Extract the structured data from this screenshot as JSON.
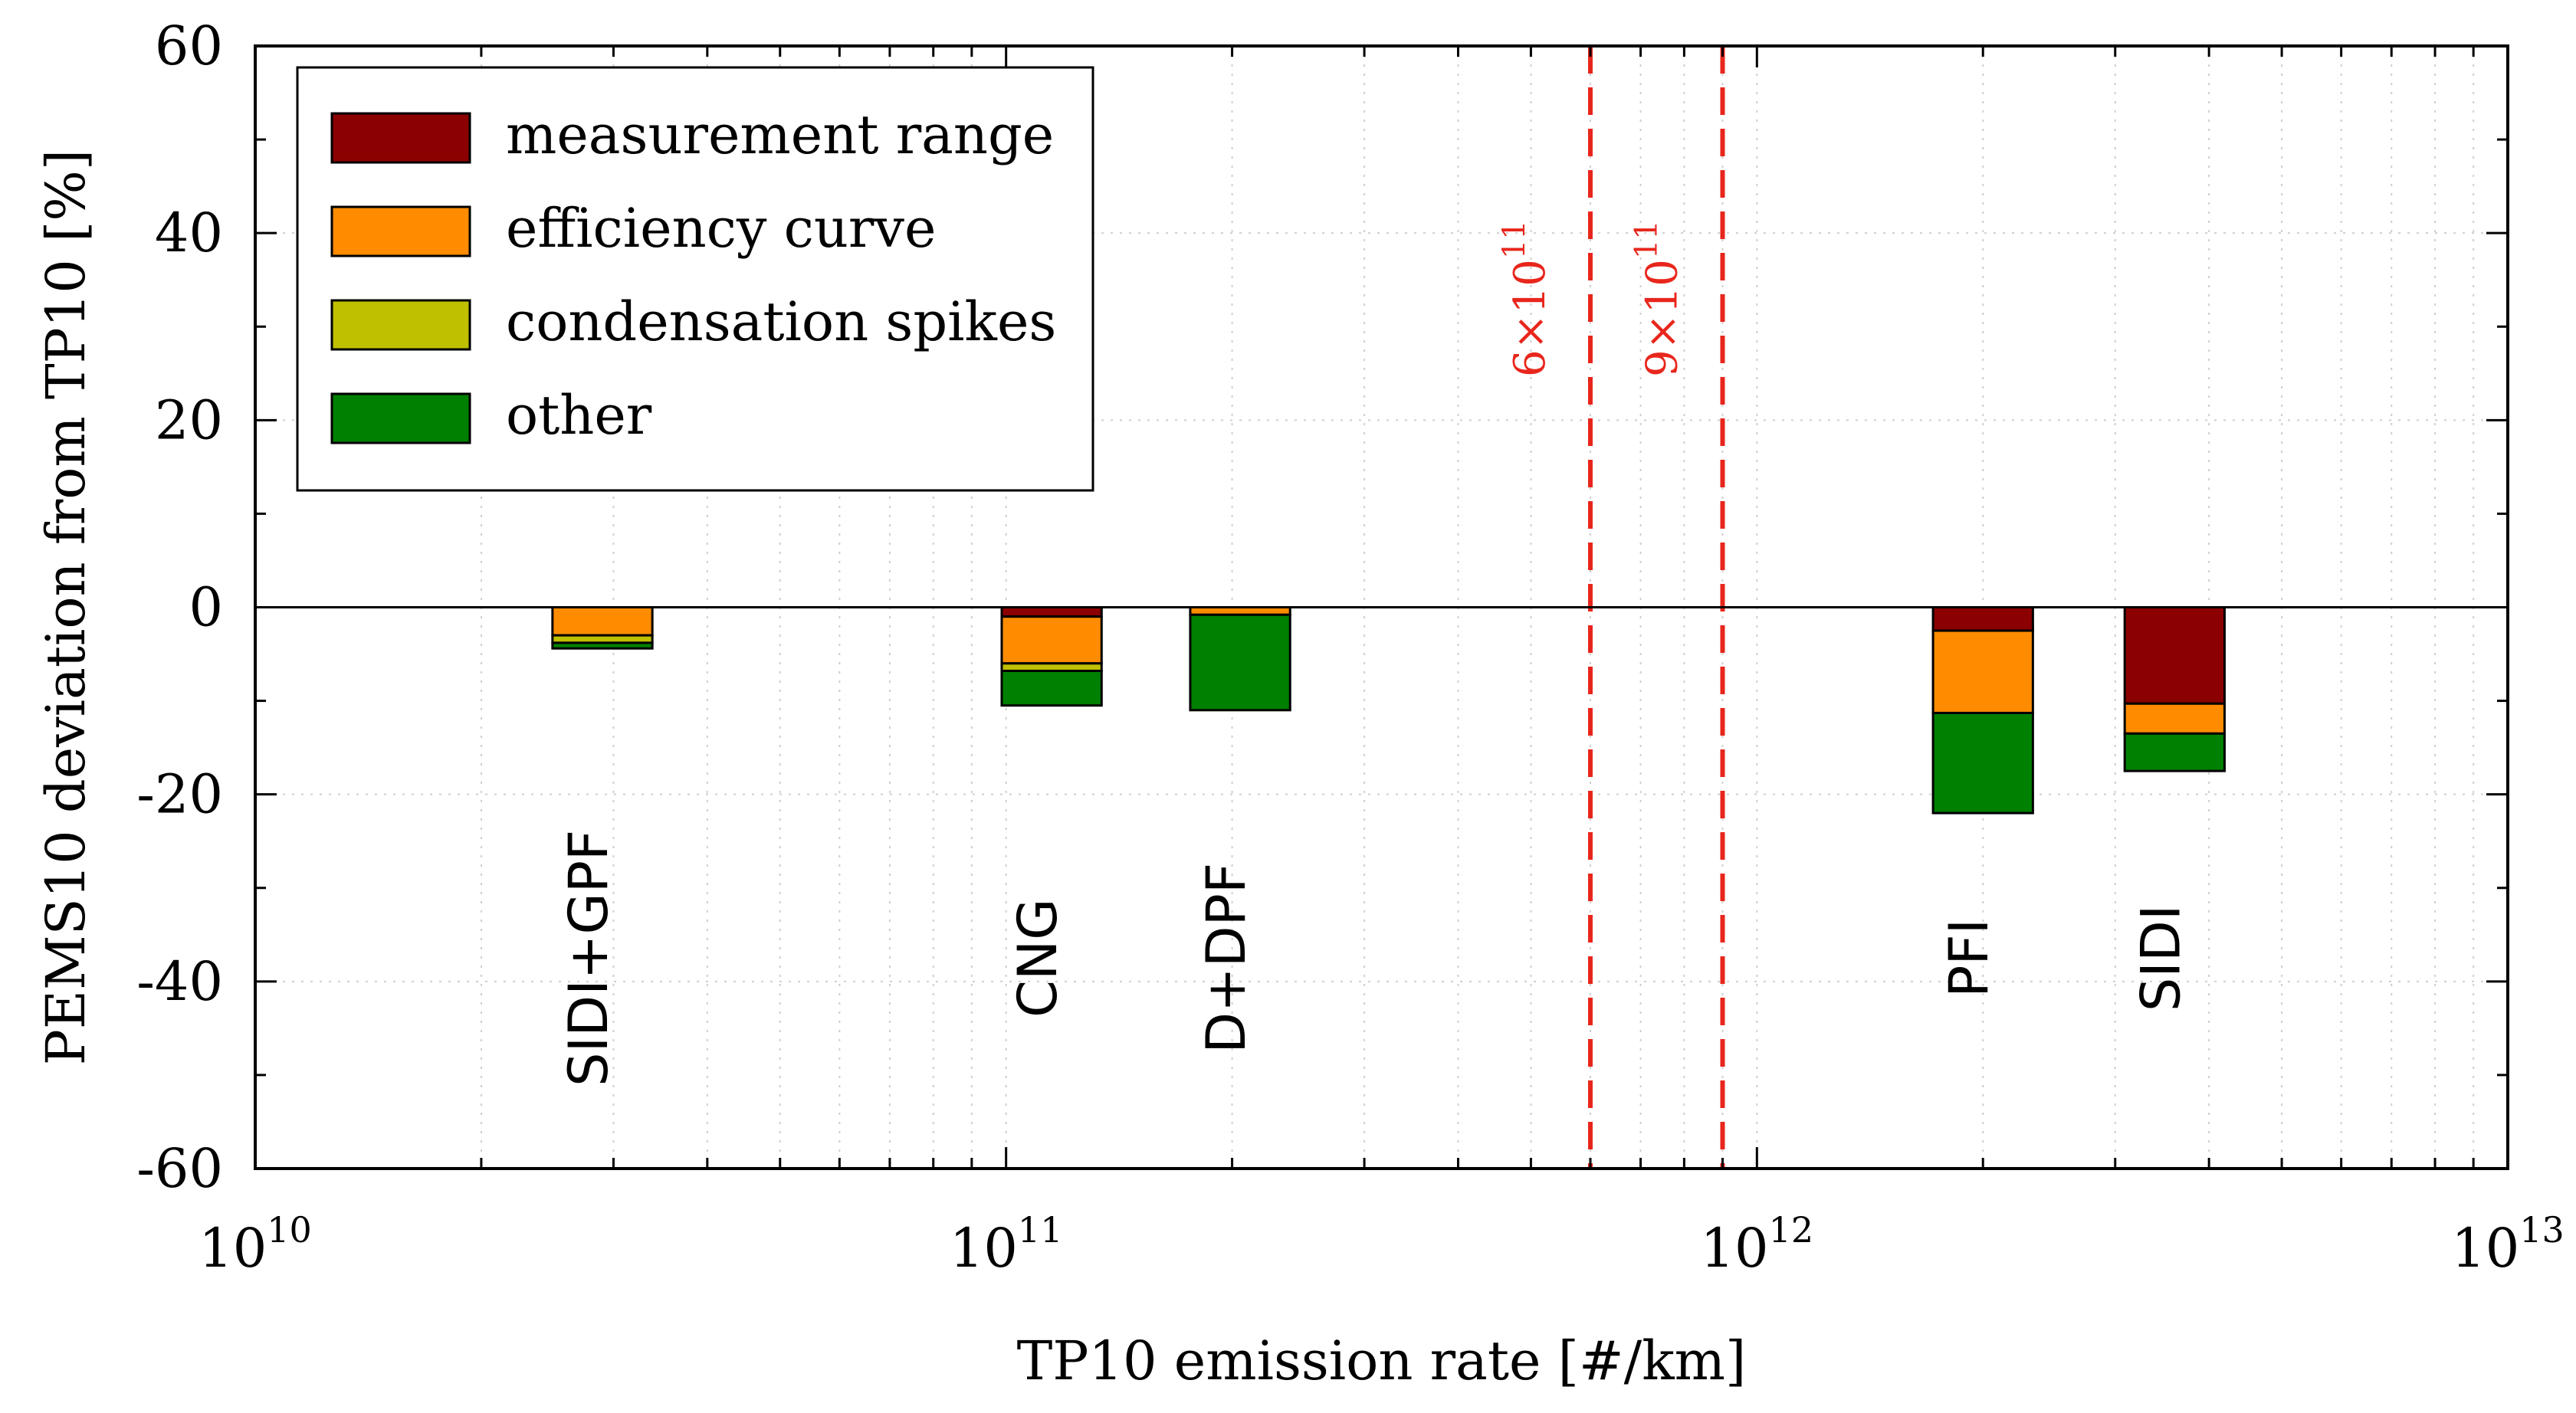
{
  "chart_data": {
    "type": "bar",
    "stacked": true,
    "title": "",
    "xlabel": "TP10 emission rate [#/km]",
    "ylabel": "PEMS10 deviation from TP10 [%]",
    "xscale": "log",
    "xlim": [
      10000000000.0,
      10000000000000.0
    ],
    "ylim": [
      -60,
      60
    ],
    "grid": true,
    "legend_position": "top-left",
    "x_ticks": [
      {
        "value": 10000000000.0,
        "base": "10",
        "exp": "10"
      },
      {
        "value": 100000000000.0,
        "base": "10",
        "exp": "11"
      },
      {
        "value": 1000000000000.0,
        "base": "10",
        "exp": "12"
      },
      {
        "value": 10000000000000.0,
        "base": "10",
        "exp": "13"
      }
    ],
    "y_ticks": [
      {
        "value": 60,
        "label": "60"
      },
      {
        "value": 40,
        "label": "40"
      },
      {
        "value": 20,
        "label": "20"
      },
      {
        "value": 0,
        "label": "0"
      },
      {
        "value": -20,
        "label": "-20"
      },
      {
        "value": -40,
        "label": "-40"
      },
      {
        "value": -60,
        "label": "-60"
      }
    ],
    "series": [
      {
        "name": "measurement range",
        "color": "#8b0000"
      },
      {
        "name": "efficiency curve",
        "color": "#ff8c00"
      },
      {
        "name": "condensation spikes",
        "color": "#bfc000"
      },
      {
        "name": "other",
        "color": "#008000"
      }
    ],
    "categories": [
      {
        "name": "SIDI+GPF",
        "x": 29000000000.0,
        "values": [
          0,
          -3.0,
          -0.8,
          -0.6
        ]
      },
      {
        "name": "CNG",
        "x": 115000000000.0,
        "values": [
          -1.0,
          -5.0,
          -0.8,
          -3.7
        ]
      },
      {
        "name": "D+DPF",
        "x": 205000000000.0,
        "values": [
          0,
          -0.8,
          0,
          -10.2
        ]
      },
      {
        "name": "PFI",
        "x": 2000000000000.0,
        "values": [
          -2.5,
          -8.8,
          0,
          -10.7
        ]
      },
      {
        "name": "SIDI",
        "x": 3600000000000.0,
        "values": [
          -10.3,
          -3.2,
          0,
          -4.0
        ]
      }
    ],
    "reference_lines": [
      {
        "x": 600000000000.0,
        "base": "6×10",
        "exp": "11",
        "color": "#e8261c"
      },
      {
        "x": 900000000000.0,
        "base": "9×10",
        "exp": "11",
        "color": "#e8261c"
      }
    ]
  }
}
